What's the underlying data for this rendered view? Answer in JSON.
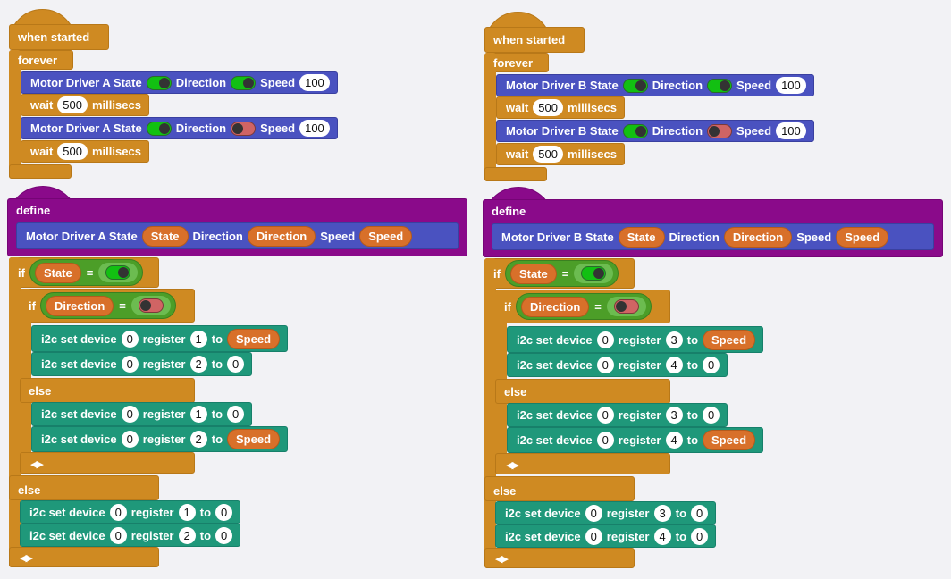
{
  "colors": {
    "event": "#cf8a22",
    "motor": "#4a52c0",
    "define": "#8a0a8a",
    "i2c": "#1f987a",
    "variable": "#d8702a",
    "operator": "#4c9e28",
    "toggle_on": "#12c012",
    "toggle_off": "#d06464"
  },
  "scripts": [
    {
      "hat": "when started",
      "forever": "forever",
      "define": "define",
      "else_inner": "else",
      "else_outer": "else",
      "motor1": [
        {
          "type": "text",
          "value": "Motor Driver A State"
        },
        {
          "type": "toggle",
          "value": "on"
        },
        {
          "type": "text",
          "value": "Direction"
        },
        {
          "type": "toggle",
          "value": "on"
        },
        {
          "type": "text",
          "value": "Speed"
        },
        {
          "type": "num",
          "value": "100"
        }
      ],
      "wait1": [
        {
          "type": "text",
          "value": "wait"
        },
        {
          "type": "num",
          "value": "500"
        },
        {
          "type": "text",
          "value": "millisecs"
        }
      ],
      "motor2": [
        {
          "type": "text",
          "value": "Motor Driver A State"
        },
        {
          "type": "toggle",
          "value": "on"
        },
        {
          "type": "text",
          "value": "Direction"
        },
        {
          "type": "toggle",
          "value": "off"
        },
        {
          "type": "text",
          "value": "Speed"
        },
        {
          "type": "num",
          "value": "100"
        }
      ],
      "wait2": [
        {
          "type": "text",
          "value": "wait"
        },
        {
          "type": "num",
          "value": "500"
        },
        {
          "type": "text",
          "value": "millisecs"
        }
      ],
      "proto": [
        {
          "type": "text",
          "value": "Motor Driver A State"
        },
        {
          "type": "var",
          "value": "State"
        },
        {
          "type": "text",
          "value": "Direction"
        },
        {
          "type": "var",
          "value": "Direction"
        },
        {
          "type": "text",
          "value": "Speed"
        },
        {
          "type": "var",
          "value": "Speed"
        }
      ],
      "if1": [
        {
          "type": "text",
          "value": "if"
        },
        {
          "type": "cond",
          "var": "State",
          "op": "=",
          "toggle": "on"
        }
      ],
      "if2": [
        {
          "type": "text",
          "value": "if"
        },
        {
          "type": "cond",
          "var": "Direction",
          "op": "=",
          "toggle": "off"
        }
      ],
      "i2c1": [
        {
          "type": "text",
          "value": "i2c set device"
        },
        {
          "type": "num",
          "value": "0"
        },
        {
          "type": "text",
          "value": "register"
        },
        {
          "type": "num",
          "value": "1"
        },
        {
          "type": "text",
          "value": "to"
        },
        {
          "type": "var",
          "value": "Speed"
        }
      ],
      "i2c2": [
        {
          "type": "text",
          "value": "i2c set device"
        },
        {
          "type": "num",
          "value": "0"
        },
        {
          "type": "text",
          "value": "register"
        },
        {
          "type": "num",
          "value": "2"
        },
        {
          "type": "text",
          "value": "to"
        },
        {
          "type": "num",
          "value": "0"
        }
      ],
      "i2c3": [
        {
          "type": "text",
          "value": "i2c set device"
        },
        {
          "type": "num",
          "value": "0"
        },
        {
          "type": "text",
          "value": "register"
        },
        {
          "type": "num",
          "value": "1"
        },
        {
          "type": "text",
          "value": "to"
        },
        {
          "type": "num",
          "value": "0"
        }
      ],
      "i2c4": [
        {
          "type": "text",
          "value": "i2c set device"
        },
        {
          "type": "num",
          "value": "0"
        },
        {
          "type": "text",
          "value": "register"
        },
        {
          "type": "num",
          "value": "2"
        },
        {
          "type": "text",
          "value": "to"
        },
        {
          "type": "var",
          "value": "Speed"
        }
      ],
      "i2c5": [
        {
          "type": "text",
          "value": "i2c set device"
        },
        {
          "type": "num",
          "value": "0"
        },
        {
          "type": "text",
          "value": "register"
        },
        {
          "type": "num",
          "value": "1"
        },
        {
          "type": "text",
          "value": "to"
        },
        {
          "type": "num",
          "value": "0"
        }
      ],
      "i2c6": [
        {
          "type": "text",
          "value": "i2c set device"
        },
        {
          "type": "num",
          "value": "0"
        },
        {
          "type": "text",
          "value": "register"
        },
        {
          "type": "num",
          "value": "2"
        },
        {
          "type": "text",
          "value": "to"
        },
        {
          "type": "num",
          "value": "0"
        }
      ]
    },
    {
      "hat": "when started",
      "forever": "forever",
      "define": "define",
      "else_inner": "else",
      "else_outer": "else",
      "motor1": [
        {
          "type": "text",
          "value": "Motor Driver B State"
        },
        {
          "type": "toggle",
          "value": "on"
        },
        {
          "type": "text",
          "value": "Direction"
        },
        {
          "type": "toggle",
          "value": "on"
        },
        {
          "type": "text",
          "value": "Speed"
        },
        {
          "type": "num",
          "value": "100"
        }
      ],
      "wait1": [
        {
          "type": "text",
          "value": "wait"
        },
        {
          "type": "num",
          "value": "500"
        },
        {
          "type": "text",
          "value": "millisecs"
        }
      ],
      "motor2": [
        {
          "type": "text",
          "value": "Motor Driver B State"
        },
        {
          "type": "toggle",
          "value": "on"
        },
        {
          "type": "text",
          "value": "Direction"
        },
        {
          "type": "toggle",
          "value": "off"
        },
        {
          "type": "text",
          "value": "Speed"
        },
        {
          "type": "num",
          "value": "100"
        }
      ],
      "wait2": [
        {
          "type": "text",
          "value": "wait"
        },
        {
          "type": "num",
          "value": "500"
        },
        {
          "type": "text",
          "value": "millisecs"
        }
      ],
      "proto": [
        {
          "type": "text",
          "value": "Motor Driver B State"
        },
        {
          "type": "var",
          "value": "State"
        },
        {
          "type": "text",
          "value": "Direction"
        },
        {
          "type": "var",
          "value": "Direction"
        },
        {
          "type": "text",
          "value": "Speed"
        },
        {
          "type": "var",
          "value": "Speed"
        }
      ],
      "if1": [
        {
          "type": "text",
          "value": "if"
        },
        {
          "type": "cond",
          "var": "State",
          "op": "=",
          "toggle": "on"
        }
      ],
      "if2": [
        {
          "type": "text",
          "value": "if"
        },
        {
          "type": "cond",
          "var": "Direction",
          "op": "=",
          "toggle": "off"
        }
      ],
      "i2c1": [
        {
          "type": "text",
          "value": "i2c set device"
        },
        {
          "type": "num",
          "value": "0"
        },
        {
          "type": "text",
          "value": "register"
        },
        {
          "type": "num",
          "value": "3"
        },
        {
          "type": "text",
          "value": "to"
        },
        {
          "type": "var",
          "value": "Speed"
        }
      ],
      "i2c2": [
        {
          "type": "text",
          "value": "i2c set device"
        },
        {
          "type": "num",
          "value": "0"
        },
        {
          "type": "text",
          "value": "register"
        },
        {
          "type": "num",
          "value": "4"
        },
        {
          "type": "text",
          "value": "to"
        },
        {
          "type": "num",
          "value": "0"
        }
      ],
      "i2c3": [
        {
          "type": "text",
          "value": "i2c set device"
        },
        {
          "type": "num",
          "value": "0"
        },
        {
          "type": "text",
          "value": "register"
        },
        {
          "type": "num",
          "value": "3"
        },
        {
          "type": "text",
          "value": "to"
        },
        {
          "type": "num",
          "value": "0"
        }
      ],
      "i2c4": [
        {
          "type": "text",
          "value": "i2c set device"
        },
        {
          "type": "num",
          "value": "0"
        },
        {
          "type": "text",
          "value": "register"
        },
        {
          "type": "num",
          "value": "4"
        },
        {
          "type": "text",
          "value": "to"
        },
        {
          "type": "var",
          "value": "Speed"
        }
      ],
      "i2c5": [
        {
          "type": "text",
          "value": "i2c set device"
        },
        {
          "type": "num",
          "value": "0"
        },
        {
          "type": "text",
          "value": "register"
        },
        {
          "type": "num",
          "value": "3"
        },
        {
          "type": "text",
          "value": "to"
        },
        {
          "type": "num",
          "value": "0"
        }
      ],
      "i2c6": [
        {
          "type": "text",
          "value": "i2c set device"
        },
        {
          "type": "num",
          "value": "0"
        },
        {
          "type": "text",
          "value": "register"
        },
        {
          "type": "num",
          "value": "4"
        },
        {
          "type": "text",
          "value": "to"
        },
        {
          "type": "num",
          "value": "0"
        }
      ]
    }
  ]
}
